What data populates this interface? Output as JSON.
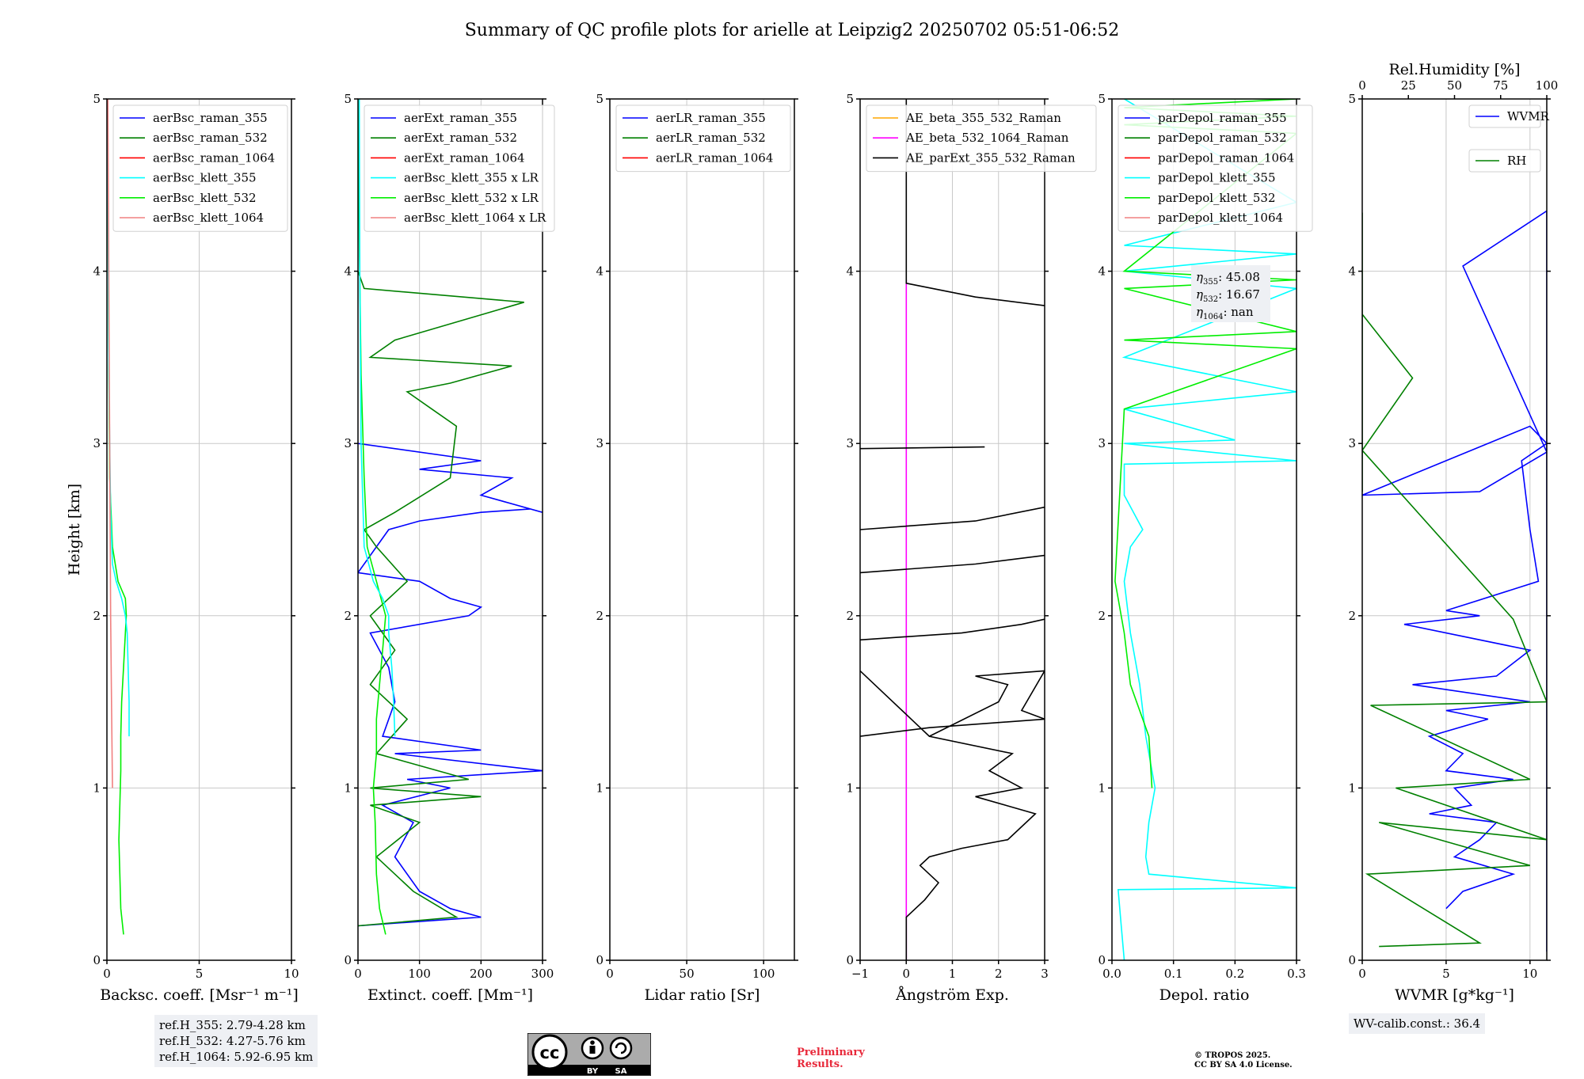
{
  "title": "Summary of QC profile plots for arielle at Leipzig2 20250702 05:51-06:52",
  "colors": {
    "blue": "#0000ff",
    "green": "#008000",
    "red": "#ff0000",
    "cyan": "#00ffff",
    "lime": "#00ee00",
    "pink": "#f08080",
    "orange": "#ffa500",
    "magenta": "#ff00ff",
    "black": "#000000"
  },
  "chart_data": [
    {
      "type": "line",
      "id": "backscatter",
      "xlabel": "Backsc. coeff. [Msr⁻¹ m⁻¹]",
      "ylabel": "Height [km]",
      "xlim": [
        0,
        10
      ],
      "ylim": [
        0,
        5
      ],
      "xticks": [
        "0",
        "5",
        "10"
      ],
      "xtick_values": [
        0,
        5,
        10
      ],
      "yticks": [
        "0",
        "1",
        "2",
        "3",
        "4",
        "5"
      ],
      "legend": [
        {
          "name": "aerBsc_raman_355",
          "color": "#0000ff"
        },
        {
          "name": "aerBsc_raman_532",
          "color": "#008000"
        },
        {
          "name": "aerBsc_raman_1064",
          "color": "#ff0000"
        },
        {
          "name": "aerBsc_klett_355",
          "color": "#00ffff"
        },
        {
          "name": "aerBsc_klett_532",
          "color": "#00ee00"
        },
        {
          "name": "aerBsc_klett_1064",
          "color": "#f08080"
        }
      ],
      "series": [
        {
          "name": "aerBsc_klett_532",
          "color": "#00ee00",
          "x": [
            0.9,
            0.75,
            0.7,
            0.65,
            0.7,
            0.75,
            0.75,
            0.8,
            0.9,
            1.0,
            1.05,
            1.0,
            0.6,
            0.3,
            0.15,
            0.1,
            0.05,
            0.05
          ],
          "y": [
            0.15,
            0.3,
            0.5,
            0.7,
            0.9,
            1.1,
            1.3,
            1.5,
            1.7,
            1.9,
            2.0,
            2.1,
            2.2,
            2.4,
            2.8,
            3.5,
            4.5,
            5.0
          ]
        },
        {
          "name": "aerBsc_klett_355",
          "color": "#00ffff",
          "x": [
            1.2,
            1.2,
            1.15,
            1.1,
            1.0,
            0.8,
            0.5,
            0.3,
            0.2,
            0.15,
            0.1,
            0.05,
            0.05
          ],
          "y": [
            1.3,
            1.5,
            1.7,
            1.9,
            2.0,
            2.1,
            2.2,
            2.3,
            2.6,
            3.0,
            3.5,
            4.5,
            5.0
          ]
        },
        {
          "name": "aerBsc_klett_1064",
          "color": "#f08080",
          "x": [
            0.3,
            0.25,
            0.2,
            0.15,
            0.1,
            0.05
          ],
          "y": [
            1.0,
            1.5,
            2.0,
            3.0,
            4.0,
            5.0
          ]
        }
      ],
      "annotation": [
        "ref.H_355: 2.79-4.28 km",
        "ref.H_532: 4.27-5.76 km",
        "ref.H_1064: 5.92-6.95 km"
      ]
    },
    {
      "type": "line",
      "id": "extinction",
      "xlabel": "Extinct. coeff. [Mm⁻¹]",
      "xlim": [
        0,
        300
      ],
      "ylim": [
        0,
        5
      ],
      "xticks": [
        "0",
        "100",
        "200",
        "300"
      ],
      "xtick_values": [
        0,
        100,
        200,
        300
      ],
      "yticks": [
        "0",
        "1",
        "2",
        "3",
        "4",
        "5"
      ],
      "legend": [
        {
          "name": "aerExt_raman_355",
          "color": "#0000ff"
        },
        {
          "name": "aerExt_raman_532",
          "color": "#008000"
        },
        {
          "name": "aerExt_raman_1064",
          "color": "#ff0000"
        },
        {
          "name": "aerBsc_klett_355 x LR",
          "color": "#00ffff"
        },
        {
          "name": "aerBsc_klett_532 x LR",
          "color": "#00ee00"
        },
        {
          "name": "aerBsc_klett_1064 x LR",
          "color": "#f08080"
        }
      ],
      "series": [
        {
          "name": "aerExt_raman_355",
          "color": "#0000ff",
          "x": [
            0,
            200,
            150,
            100,
            60,
            90,
            40,
            150,
            80,
            300,
            60,
            200,
            40,
            60,
            50,
            20,
            180,
            200,
            150,
            100,
            0,
            50,
            100,
            200,
            280,
            300,
            200,
            250,
            100,
            200,
            0
          ],
          "y": [
            0.2,
            0.25,
            0.3,
            0.4,
            0.6,
            0.8,
            0.9,
            1.0,
            1.05,
            1.1,
            1.2,
            1.22,
            1.3,
            1.5,
            1.7,
            1.9,
            2.0,
            2.05,
            2.1,
            2.2,
            2.25,
            2.5,
            2.55,
            2.6,
            2.62,
            2.6,
            2.7,
            2.8,
            2.85,
            2.9,
            3.0
          ]
        },
        {
          "name": "aerExt_raman_532",
          "color": "#008000",
          "x": [
            0,
            160,
            90,
            30,
            100,
            20,
            200,
            20,
            180,
            30,
            80,
            20,
            60,
            20,
            80,
            30,
            10,
            60,
            150,
            160,
            120,
            80,
            150,
            250,
            20,
            60,
            270,
            10,
            0
          ],
          "y": [
            0.2,
            0.25,
            0.4,
            0.6,
            0.8,
            0.9,
            0.95,
            1.0,
            1.05,
            1.2,
            1.4,
            1.6,
            1.8,
            2.0,
            2.2,
            2.4,
            2.5,
            2.6,
            2.8,
            3.1,
            3.2,
            3.3,
            3.35,
            3.45,
            3.5,
            3.6,
            3.82,
            3.9,
            4.0
          ]
        },
        {
          "name": "aerBsc_klett_532 x LR",
          "color": "#00ee00",
          "x": [
            45,
            35,
            30,
            28,
            25,
            30,
            30,
            35,
            40,
            45,
            30,
            15,
            10,
            5,
            2,
            0
          ],
          "y": [
            0.15,
            0.3,
            0.5,
            0.8,
            1.0,
            1.2,
            1.4,
            1.6,
            1.8,
            2.0,
            2.2,
            2.4,
            2.8,
            3.4,
            4.2,
            5.0
          ]
        },
        {
          "name": "aerBsc_klett_355 x LR",
          "color": "#00ffff",
          "x": [
            60,
            58,
            55,
            50,
            50,
            40,
            25,
            10,
            5,
            3,
            2
          ],
          "y": [
            1.3,
            1.5,
            1.7,
            1.9,
            2.0,
            2.1,
            2.2,
            2.4,
            3.0,
            4.0,
            5.0
          ]
        }
      ]
    },
    {
      "type": "line",
      "id": "lidar-ratio",
      "xlabel": "Lidar ratio [Sr]",
      "xlim": [
        0,
        120
      ],
      "ylim": [
        0,
        5
      ],
      "xticks": [
        "0",
        "50",
        "100"
      ],
      "xtick_values": [
        0,
        50,
        100
      ],
      "yticks": [
        "0",
        "1",
        "2",
        "3",
        "4",
        "5"
      ],
      "legend": [
        {
          "name": "aerLR_raman_355",
          "color": "#0000ff"
        },
        {
          "name": "aerLR_raman_532",
          "color": "#008000"
        },
        {
          "name": "aerLR_raman_1064",
          "color": "#ff0000"
        }
      ],
      "series": []
    },
    {
      "type": "line",
      "id": "angstrom",
      "xlabel": "Ångström Exp.",
      "xlim": [
        -1,
        3
      ],
      "ylim": [
        0,
        5
      ],
      "xticks": [
        "−1",
        "0",
        "1",
        "2",
        "3"
      ],
      "xtick_values": [
        -1,
        0,
        1,
        2,
        3
      ],
      "yticks": [
        "0",
        "1",
        "2",
        "3",
        "4",
        "5"
      ],
      "legend": [
        {
          "name": "AE_beta_355_532_Raman",
          "color": "#ffa500"
        },
        {
          "name": "AE_beta_532_1064_Raman",
          "color": "#ff00ff"
        },
        {
          "name": "AE_parExt_355_532_Raman",
          "color": "#000000"
        }
      ],
      "series": [
        {
          "name": "AE_beta_532_1064_Raman",
          "color": "#ff00ff",
          "x": [
            0,
            0
          ],
          "y": [
            0,
            3.95
          ]
        },
        {
          "name": "AE_parExt_355_532_Raman",
          "color": "#000000",
          "x": [
            0,
            0,
            0.4,
            0.7,
            0.3,
            0.5,
            1.2,
            2.2,
            2.8,
            1.5,
            2.5,
            1.8,
            2.3,
            0.5,
            -1,
            0.5,
            2.0,
            2.2,
            1.5,
            3.0,
            2.5,
            3.0,
            0.5,
            -1
          ],
          "y": [
            0,
            0.25,
            0.35,
            0.45,
            0.55,
            0.6,
            0.65,
            0.7,
            0.85,
            0.95,
            1.0,
            1.1,
            1.2,
            1.3,
            1.68,
            1.3,
            1.5,
            1.6,
            1.65,
            1.68,
            1.45,
            1.4,
            1.35,
            1.3
          ]
        },
        {
          "name": "AE_parExt_355_532_Raman",
          "color": "#000000",
          "x": [
            -1,
            1.2,
            2.5,
            3.0
          ],
          "y": [
            1.86,
            1.9,
            1.95,
            1.98
          ]
        },
        {
          "name": "AE_parExt_355_532_Raman",
          "color": "#000000",
          "x": [
            -1,
            1.5,
            3.0
          ],
          "y": [
            2.25,
            2.3,
            2.35
          ]
        },
        {
          "name": "AE_parExt_355_532_Raman",
          "color": "#000000",
          "x": [
            -1,
            1.5,
            3.0
          ],
          "y": [
            2.5,
            2.55,
            2.63
          ]
        },
        {
          "name": "AE_parExt_355_532_Raman",
          "color": "#000000",
          "x": [
            -1,
            1.7
          ],
          "y": [
            2.97,
            2.98
          ]
        },
        {
          "name": "AE_parExt_355_532_Raman",
          "color": "#000000",
          "x": [
            0,
            0,
            1.5,
            3.0
          ],
          "y": [
            5.0,
            3.93,
            3.85,
            3.8
          ]
        }
      ]
    },
    {
      "type": "line",
      "id": "depolarization",
      "xlabel": "Depol. ratio",
      "xlim": [
        0,
        0.3
      ],
      "ylim": [
        0,
        5
      ],
      "xticks": [
        "0.0",
        "0.1",
        "0.2",
        "0.3"
      ],
      "xtick_values": [
        0,
        0.1,
        0.2,
        0.3
      ],
      "yticks": [
        "0",
        "1",
        "2",
        "3",
        "4",
        "5"
      ],
      "legend": [
        {
          "name": "parDepol_raman_355",
          "color": "#0000ff"
        },
        {
          "name": "parDepol_raman_532",
          "color": "#008000"
        },
        {
          "name": "parDepol_raman_1064",
          "color": "#ff0000"
        },
        {
          "name": "parDepol_klett_355",
          "color": "#00ffff"
        },
        {
          "name": "parDepol_klett_532",
          "color": "#00ee00"
        },
        {
          "name": "parDepol_klett_1064",
          "color": "#f08080"
        }
      ],
      "series": [
        {
          "name": "parDepol_klett_355",
          "color": "#00ffff",
          "x": [
            0.02,
            0.015,
            0.01,
            0.3,
            0.06,
            0.055,
            0.06,
            0.07,
            0.055,
            0.045,
            0.03,
            0.02,
            0.03,
            0.05,
            0.02,
            0.02,
            0.3,
            0.02,
            0.2,
            0.02,
            0.3,
            0.02,
            0.3,
            0.02,
            0.3,
            0.02,
            0.3,
            0.02
          ],
          "y": [
            0,
            0.2,
            0.41,
            0.42,
            0.5,
            0.6,
            0.8,
            1.0,
            1.3,
            1.6,
            1.9,
            2.2,
            2.4,
            2.5,
            2.7,
            2.88,
            2.9,
            3.0,
            3.02,
            3.2,
            3.3,
            3.5,
            3.9,
            4.0,
            4.1,
            4.15,
            4.4,
            5.0
          ]
        },
        {
          "name": "parDepol_klett_532",
          "color": "#00ee00",
          "x": [
            0.065,
            0.06,
            0.03,
            0.02,
            0.01,
            0.005,
            0.02,
            0.3,
            0.02,
            0.3,
            0.02,
            0.3,
            0.02,
            0.3,
            0.02,
            0.3,
            0.02,
            0.3,
            0.02
          ],
          "y": [
            1.0,
            1.3,
            1.6,
            1.9,
            2.1,
            2.2,
            3.2,
            3.55,
            3.6,
            3.65,
            3.9,
            3.95,
            4.0,
            4.8,
            4.85,
            4.9,
            4.95,
            5.0,
            5.0
          ]
        }
      ],
      "annotation": {
        "eta_355": "45.08",
        "eta_532": "16.67",
        "eta_1064": "nan"
      }
    },
    {
      "type": "line",
      "id": "wvmr",
      "xlabel": "WVMR [g*kg⁻¹]",
      "top_xlabel": "Rel.Humidity [%]",
      "xlim": [
        0,
        11
      ],
      "ylim": [
        0,
        5
      ],
      "xticks": [
        "0",
        "5",
        "10"
      ],
      "xtick_values": [
        0,
        5,
        10
      ],
      "top_xticks": [
        "0",
        "25",
        "50",
        "75",
        "100"
      ],
      "top_xtick_values": [
        0,
        25,
        50,
        75,
        100
      ],
      "yticks": [
        "0",
        "1",
        "2",
        "3",
        "4",
        "5"
      ],
      "legend": [
        {
          "name": "WVMR",
          "color": "#0000ff"
        },
        {
          "name": "RH",
          "color": "#008000"
        }
      ],
      "series": [
        {
          "name": "WVMR",
          "color": "#0000ff",
          "x": [
            5,
            6,
            9,
            5.5,
            7,
            8,
            4,
            6.5,
            5.5,
            9,
            5,
            6,
            4,
            7.5,
            5,
            10,
            3,
            8,
            10,
            2.5,
            7,
            5,
            10.5,
            10,
            9.5,
            11,
            10,
            0,
            7,
            11,
            6,
            11,
            11,
            11
          ],
          "y": [
            0.3,
            0.4,
            0.5,
            0.6,
            0.7,
            0.8,
            0.85,
            0.9,
            1.0,
            1.05,
            1.1,
            1.2,
            1.3,
            1.4,
            1.45,
            1.5,
            1.6,
            1.65,
            1.8,
            1.95,
            2.0,
            2.03,
            2.2,
            2.5,
            2.9,
            3.0,
            3.1,
            2.7,
            2.72,
            2.95,
            4.03,
            4.35,
            2.05,
            0.05
          ]
        },
        {
          "name": "RH",
          "color": "#008000",
          "x": [
            1,
            7,
            0.3,
            10,
            1,
            11,
            2,
            10,
            0.5,
            11,
            9,
            0,
            3,
            0,
            0,
            0,
            0,
            0
          ],
          "y": [
            0.08,
            0.1,
            0.5,
            0.55,
            0.8,
            0.7,
            1.0,
            1.05,
            1.48,
            1.5,
            1.98,
            2.96,
            3.38,
            3.75,
            3.78,
            4.15,
            4.34,
            2.72
          ]
        }
      ],
      "annotation": "WV-calib.const.: 36.4"
    }
  ],
  "footer": {
    "preliminary_line1": "Preliminary",
    "preliminary_line2": "Results.",
    "copyright_line1": "© TROPOS 2025.",
    "copyright_line2": "CC BY SA 4.0 License.",
    "cc_label_by": "BY",
    "cc_label_sa": "SA",
    "cc_logo": "cc-icon"
  }
}
